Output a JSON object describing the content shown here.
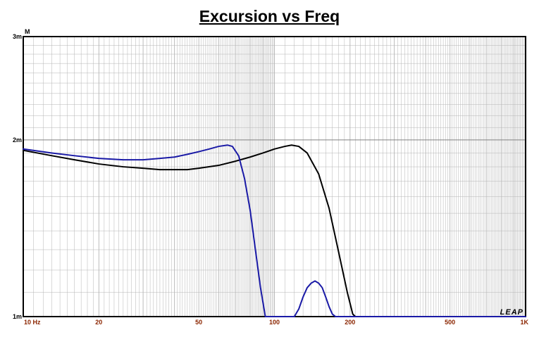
{
  "chart_data": {
    "type": "line",
    "title": "Excursion vs Freq",
    "ylabel": "M",
    "xlabel": "",
    "x_scale": "log",
    "y_scale": "log",
    "xlim": [
      10,
      1000
    ],
    "ylim": [
      0.001,
      0.003
    ],
    "grid": true,
    "x_tick_labels": [
      {
        "value": 10,
        "label": "10 Hz"
      },
      {
        "value": 20,
        "label": "20"
      },
      {
        "value": 50,
        "label": "50"
      },
      {
        "value": 100,
        "label": "100"
      },
      {
        "value": 200,
        "label": "200"
      },
      {
        "value": 500,
        "label": "500"
      },
      {
        "value": 1000,
        "label": "1K"
      }
    ],
    "y_tick_labels": [
      {
        "value": 0.003,
        "label": "3m"
      },
      {
        "value": 0.002,
        "label": "2m"
      },
      {
        "value": 0.001,
        "label": "1m"
      }
    ],
    "watermark": "LEAP",
    "colors": {
      "axis_text": "#8b2500",
      "series_black": "#000000",
      "series_blue": "#1a1aa6",
      "grid": "#b4b4b4"
    },
    "series": [
      {
        "color": "#000000",
        "x": [
          10,
          13,
          16,
          20,
          25,
          30,
          35,
          40,
          45,
          50,
          60,
          70,
          80,
          90,
          100,
          110,
          117,
          125,
          135,
          150,
          165,
          180,
          195,
          205,
          210,
          300,
          500,
          1000
        ],
        "y": [
          0.00192,
          0.00188,
          0.00185,
          0.00182,
          0.0018,
          0.00179,
          0.00178,
          0.00178,
          0.00178,
          0.00179,
          0.00181,
          0.00184,
          0.00187,
          0.0019,
          0.00193,
          0.00195,
          0.00196,
          0.00195,
          0.0019,
          0.00175,
          0.00153,
          0.00129,
          0.0011,
          0.00101,
          0.001,
          0.001,
          0.001,
          0.001
        ]
      },
      {
        "color": "#1a1aa6",
        "x": [
          10,
          13,
          16,
          20,
          25,
          30,
          35,
          40,
          45,
          50,
          55,
          60,
          65,
          68,
          72,
          76,
          80,
          84,
          88,
          92,
          100,
          120,
          125,
          130,
          135,
          140,
          145,
          150,
          155,
          160,
          165,
          170,
          175,
          180,
          250,
          500,
          1000
        ],
        "y": [
          0.00193,
          0.0019,
          0.00188,
          0.00186,
          0.00185,
          0.00185,
          0.00186,
          0.00187,
          0.00189,
          0.00191,
          0.00193,
          0.00195,
          0.00196,
          0.00195,
          0.00188,
          0.00172,
          0.00152,
          0.0013,
          0.00112,
          0.001,
          0.001,
          0.001,
          0.00103,
          0.00108,
          0.00112,
          0.00114,
          0.00115,
          0.00114,
          0.00112,
          0.00108,
          0.00104,
          0.00101,
          0.001,
          0.001,
          0.001,
          0.001,
          0.001
        ]
      }
    ]
  }
}
